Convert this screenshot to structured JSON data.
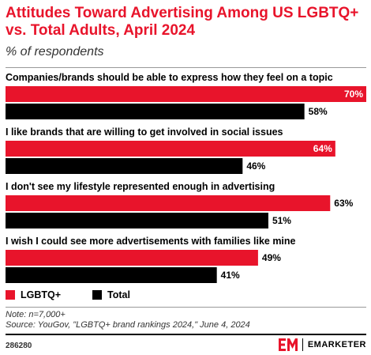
{
  "header": {
    "title": "Attitudes Toward Advertising Among US LGBTQ+ vs. Total Adults, April 2024",
    "subtitle": "% of respondents"
  },
  "chart_data": {
    "type": "bar",
    "orientation": "horizontal",
    "categories": [
      "Companies/brands should be able to express how they feel on a topic",
      "I like brands that are willing to get involved in social issues",
      "I don't see my lifestyle represented enough in advertising",
      "I wish I could see more advertisements with families like mine"
    ],
    "series": [
      {
        "name": "LGBTQ+",
        "color": "#e8142b",
        "values": [
          70,
          64,
          63,
          49
        ]
      },
      {
        "name": "Total",
        "color": "#000000",
        "values": [
          58,
          46,
          51,
          41
        ]
      }
    ],
    "value_suffix": "%",
    "xlim": [
      0,
      70
    ],
    "grid": false,
    "legend_position": "bottom-left"
  },
  "legend": {
    "items": [
      "LGBTQ+",
      "Total"
    ]
  },
  "footer": {
    "note": "Note: n=7,000+",
    "source": "Source: YouGov, \"LGBTQ+ brand rankings 2024,\" June 4, 2024",
    "code": "286280",
    "brand": "EMARKETER"
  }
}
